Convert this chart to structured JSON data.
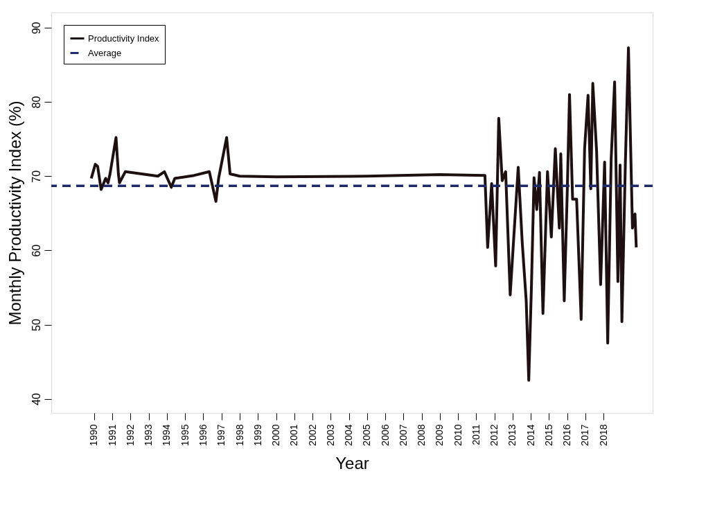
{
  "chart_data": {
    "type": "line",
    "xlabel": "Year",
    "ylabel": "Monthly Productivity Index (%)",
    "xlim": [
      1987.64,
      2020.7
    ],
    "xticks": [
      1990,
      1991,
      1992,
      1993,
      1994,
      1995,
      1996,
      1997,
      1998,
      1999,
      2000,
      2001,
      2002,
      2003,
      2004,
      2005,
      2006,
      2007,
      2008,
      2009,
      2010,
      2011,
      2012,
      2013,
      2014,
      2015,
      2016,
      2017,
      2018
    ],
    "ylim": [
      38.1,
      92.05
    ],
    "yticks": [
      40,
      50,
      60,
      70,
      80,
      90
    ],
    "grid": false,
    "legend": "top left",
    "line_style": "solid",
    "marker": "none",
    "series": [
      {
        "name": "Productivity Index",
        "color": "#1e1010",
        "x": [
          1989.84,
          1990.06,
          1990.19,
          1990.38,
          1990.63,
          1990.76,
          1990.87,
          1991.2,
          1991.33,
          1991.39,
          1991.71,
          1993.5,
          1993.86,
          1994.24,
          1994.43,
          1995.5,
          1996.33,
          1996.69,
          1996.84,
          1997.28,
          1997.47,
          1998.0,
          2000.0,
          2005.0,
          2009.0,
          2011.48,
          2011.63,
          2011.85,
          2012.07,
          2012.24,
          2012.43,
          2012.62,
          2012.87,
          2013.06,
          2013.31,
          2013.53,
          2013.75,
          2013.89,
          2014.04,
          2014.18,
          2014.33,
          2014.48,
          2014.67,
          2014.92,
          2015.13,
          2015.35,
          2015.57,
          2015.65,
          2015.84,
          2016.01,
          2016.13,
          2016.3,
          2016.52,
          2016.77,
          2016.96,
          2017.15,
          2017.3,
          2017.41,
          2017.62,
          2017.84,
          2018.06,
          2018.23,
          2018.42,
          2018.61,
          2018.79,
          2018.91,
          2019.01,
          2019.2,
          2019.37,
          2019.59,
          2019.73,
          2019.8
        ],
        "values": [
          69.7,
          71.6,
          71.3,
          68.2,
          69.7,
          69.1,
          70.3,
          75.2,
          70.3,
          69.1,
          70.6,
          70.0,
          70.6,
          68.5,
          69.7,
          70.1,
          70.6,
          66.6,
          69.7,
          75.2,
          70.3,
          70.0,
          69.9,
          70.0,
          70.2,
          70.1,
          60.4,
          69.0,
          57.9,
          77.8,
          69.4,
          70.6,
          54.0,
          61.5,
          71.2,
          61.1,
          53.2,
          42.5,
          55.4,
          69.8,
          65.5,
          70.5,
          51.5,
          70.6,
          61.8,
          73.7,
          63.0,
          73.0,
          53.2,
          68.3,
          81.0,
          66.9,
          66.9,
          50.7,
          73.7,
          80.9,
          68.3,
          82.5,
          73.3,
          55.4,
          71.9,
          47.5,
          72.3,
          82.7,
          55.8,
          71.5,
          50.4,
          71.7,
          87.3,
          63.0,
          64.9,
          60.4
        ]
      }
    ],
    "ref_lines": [
      {
        "axis": "y",
        "value": 68.7,
        "label": "Average",
        "color": "#1f2a6b",
        "line_style": "dashed"
      }
    ]
  }
}
